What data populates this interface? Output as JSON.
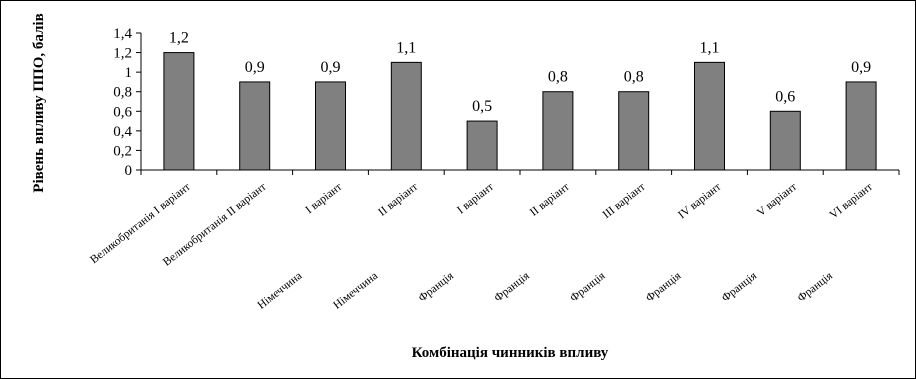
{
  "chart_data": {
    "type": "bar",
    "ylabel": "Рівень впливу ППО, балів",
    "xlabel": "Комбінація чинників впливу",
    "ylim": [
      0,
      1.4
    ],
    "yticks": [
      "0",
      "0,2",
      "0,4",
      "0,6",
      "0,8",
      "1",
      "1,2",
      "1,4"
    ],
    "grid": false,
    "legend": "none",
    "bar_color": "#808080",
    "categories": [
      {
        "line1": "Великобританія I варіант",
        "line2": ""
      },
      {
        "line1": "Великобританія II варіант",
        "line2": ""
      },
      {
        "line1": "I варіант",
        "line2": "Німеччина"
      },
      {
        "line1": "II варіант",
        "line2": "Німеччина"
      },
      {
        "line1": "I варіант",
        "line2": "Франція"
      },
      {
        "line1": "II варіант",
        "line2": "Франція"
      },
      {
        "line1": "III варіант",
        "line2": "Франція"
      },
      {
        "line1": "IV варіант",
        "line2": "Франція"
      },
      {
        "line1": "V варіант",
        "line2": "Франція"
      },
      {
        "line1": "VI варіант",
        "line2": "Франція"
      }
    ],
    "values": [
      1.2,
      0.9,
      0.9,
      1.1,
      0.5,
      0.8,
      0.8,
      1.1,
      0.6,
      0.9
    ],
    "data_labels": [
      "1,2",
      "0,9",
      "0,9",
      "1,1",
      "0,5",
      "0,8",
      "0,8",
      "1,1",
      "0,6",
      "0,9"
    ]
  }
}
